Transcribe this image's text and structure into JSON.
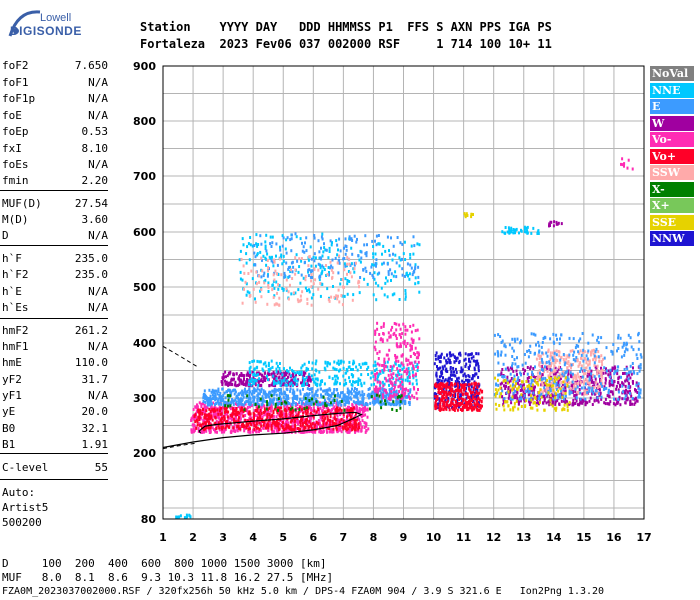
{
  "logo": {
    "line1": "Lowell",
    "line2": "DIGISONDE"
  },
  "header": {
    "row1": "Station    YYYY DAY   DDD HHMMSS P1  FFS S AXN PPS IGA PS",
    "row2": "Fortaleza  2023 Fev06 037 002000 RSF     1 714 100 10+ 11"
  },
  "params": [
    {
      "k": "foF2",
      "v": "7.650"
    },
    {
      "k": "foF1",
      "v": "N/A"
    },
    {
      "k": "foF1p",
      "v": "N/A"
    },
    {
      "k": "foE",
      "v": "N/A"
    },
    {
      "k": "foEp",
      "v": "0.53"
    },
    {
      "k": "fxI",
      "v": "8.10"
    },
    {
      "k": "foEs",
      "v": "N/A"
    },
    {
      "k": "fmin",
      "v": "2.20"
    },
    {
      "k": "MUF(D)",
      "v": "27.54"
    },
    {
      "k": "M(D)",
      "v": "3.60"
    },
    {
      "k": "D",
      "v": "N/A"
    },
    {
      "k": "h`F",
      "v": "235.0"
    },
    {
      "k": "h`F2",
      "v": "235.0"
    },
    {
      "k": "h`E",
      "v": "N/A"
    },
    {
      "k": "h`Es",
      "v": "N/A"
    },
    {
      "k": "hmF2",
      "v": "261.2"
    },
    {
      "k": "hmF1",
      "v": "N/A"
    },
    {
      "k": "hmE",
      "v": "110.0"
    },
    {
      "k": "yF2",
      "v": "31.7"
    },
    {
      "k": "yF1",
      "v": "N/A"
    },
    {
      "k": "yE",
      "v": "20.0"
    },
    {
      "k": "B0",
      "v": "32.1"
    },
    {
      "k": "B1",
      "v": "1.91"
    },
    {
      "k": "C-level",
      "v": "55"
    }
  ],
  "auto": {
    "line1": "Auto:",
    "line2": "Artist5",
    "line3": "500200"
  },
  "footer": {
    "row1": "D     100  200  400  600  800 1000 1500 3000 [km]",
    "row2": "MUF   8.0  8.1  8.6  9.3 10.3 11.8 16.2 27.5 [MHz]",
    "row3": "FZA0M_2023037002000.RSF / 320fx256h 50 kHz 5.0 km / DPS-4 FZA0M 904 / 3.9 S 321.6 E   Ion2Png 1.3.20"
  },
  "legend": [
    {
      "label": "NoVal",
      "color": "#808080"
    },
    {
      "label": "NNE",
      "color": "#00c8ff"
    },
    {
      "label": "E",
      "color": "#3c9bff"
    },
    {
      "label": "W",
      "color": "#a000a0"
    },
    {
      "label": "Vo-",
      "color": "#ff2cb4"
    },
    {
      "label": "Vo+",
      "color": "#ff0028"
    },
    {
      "label": "SSW",
      "color": "#ffaaaa"
    },
    {
      "label": "X-",
      "color": "#008000"
    },
    {
      "label": "X+",
      "color": "#78c85a"
    },
    {
      "label": "SSE",
      "color": "#e6d200"
    },
    {
      "label": "NNW",
      "color": "#1e14d2"
    }
  ],
  "chart_data": {
    "type": "scatter",
    "xlim": [
      1,
      17
    ],
    "ylim": [
      80,
      900
    ],
    "x_ticks": [
      1,
      2,
      3,
      4,
      5,
      6,
      7,
      8,
      9,
      10,
      11,
      12,
      13,
      14,
      15,
      16,
      17
    ],
    "y_ticks": [
      80,
      200,
      300,
      400,
      500,
      600,
      700,
      800,
      900
    ],
    "grid": true,
    "clusters": [
      {
        "name": "W",
        "color": "#a000a0",
        "x": [
          2.9,
          5.9
        ],
        "y": [
          325,
          350
        ],
        "n": 260
      },
      {
        "name": "Vo-",
        "color": "#ff2cb4",
        "x": [
          1.9,
          7.8
        ],
        "y": [
          240,
          295
        ],
        "n": 900
      },
      {
        "name": "Vo+",
        "color": "#ff0028",
        "x": [
          2.0,
          7.5
        ],
        "y": [
          245,
          285
        ],
        "n": 500
      },
      {
        "name": "E",
        "color": "#3c9bff",
        "x": [
          2.3,
          9.2
        ],
        "y": [
          290,
          320
        ],
        "n": 700
      },
      {
        "name": "NNE",
        "color": "#00c8ff",
        "x": [
          3.8,
          9.5
        ],
        "y": [
          325,
          370
        ],
        "n": 300
      },
      {
        "name": "NNW",
        "color": "#1e14d2",
        "x": [
          10.0,
          11.5
        ],
        "y": [
          285,
          385
        ],
        "n": 320
      },
      {
        "name": "Vo+",
        "color": "#ff0028",
        "x": [
          10.0,
          11.6
        ],
        "y": [
          280,
          330
        ],
        "n": 260
      },
      {
        "name": "W",
        "color": "#a000a0",
        "x": [
          12.2,
          16.8
        ],
        "y": [
          290,
          360
        ],
        "n": 500
      },
      {
        "name": "SSW",
        "color": "#ffaaaa",
        "x": [
          13.4,
          15.6
        ],
        "y": [
          310,
          390
        ],
        "n": 260
      },
      {
        "name": "E",
        "color": "#3c9bff",
        "x": [
          12.0,
          16.9
        ],
        "y": [
          300,
          420
        ],
        "n": 360
      },
      {
        "name": "SSE",
        "color": "#e6d200",
        "x": [
          12.0,
          14.5
        ],
        "y": [
          280,
          340
        ],
        "n": 120
      },
      {
        "name": "Vo-",
        "color": "#ff2cb4",
        "x": [
          8.0,
          9.5
        ],
        "y": [
          300,
          440
        ],
        "n": 220
      },
      {
        "name": "X-",
        "color": "#008000",
        "x": [
          3.0,
          9.0
        ],
        "y": [
          280,
          310
        ],
        "n": 60
      },
      {
        "name": "NNE",
        "color": "#00c8ff",
        "x": [
          3.5,
          9.5
        ],
        "y": [
          480,
          600
        ],
        "n": 240
      },
      {
        "name": "E",
        "color": "#3c9bff",
        "x": [
          4.0,
          9.5
        ],
        "y": [
          520,
          600
        ],
        "n": 180
      },
      {
        "name": "SSW",
        "color": "#ffaaaa",
        "x": [
          3.5,
          7.5
        ],
        "y": [
          470,
          560
        ],
        "n": 120
      },
      {
        "name": "NNE",
        "color": "#00c8ff",
        "x": [
          12.2,
          13.5
        ],
        "y": [
          600,
          612
        ],
        "n": 40
      },
      {
        "name": "W",
        "color": "#a000a0",
        "x": [
          13.8,
          14.3
        ],
        "y": [
          612,
          622
        ],
        "n": 12
      },
      {
        "name": "SSE",
        "color": "#e6d200",
        "x": [
          10.9,
          11.3
        ],
        "y": [
          628,
          636
        ],
        "n": 10
      },
      {
        "name": "Vo-",
        "color": "#ff2cb4",
        "x": [
          16.2,
          16.6
        ],
        "y": [
          715,
          735
        ],
        "n": 8
      },
      {
        "name": "NNE",
        "color": "#00c8ff",
        "x": [
          1.4,
          1.9
        ],
        "y": [
          85,
          90
        ],
        "n": 12
      }
    ],
    "profile_curve": {
      "x": [
        1.0,
        2.0,
        3.0,
        4.0,
        5.0,
        6.0,
        6.8,
        7.3,
        7.6,
        7.4,
        6.8,
        6.0,
        5.0,
        4.0,
        3.2,
        2.8,
        2.4,
        2.2,
        2.25
      ],
      "y": [
        210,
        220,
        228,
        233,
        236,
        242,
        250,
        262,
        270,
        274,
        272,
        268,
        262,
        258,
        254,
        252,
        249,
        240,
        236
      ]
    },
    "profile_dashed": [
      {
        "x": [
          1.0,
          1.6,
          2.2
        ],
        "y": [
          394,
          375,
          355
        ]
      },
      {
        "x": [
          1.0,
          1.5,
          2.1
        ],
        "y": [
          208,
          213,
          218
        ]
      }
    ]
  }
}
